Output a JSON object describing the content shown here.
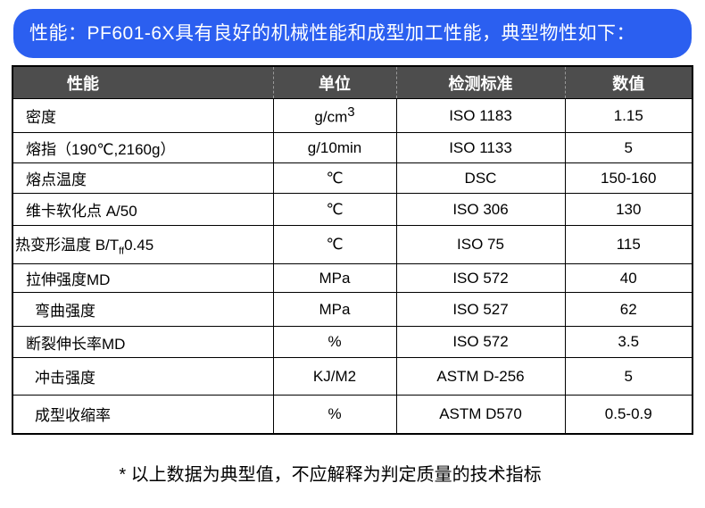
{
  "header": {
    "title": "性能：PF601-6X具有良好的机械性能和成型加工性能，典型物性如下："
  },
  "table": {
    "columns": [
      "性能",
      "单位",
      "检测标准",
      "数值"
    ],
    "rows": [
      [
        "密度",
        [
          "g/cm",
          "3"
        ],
        "ISO 1183",
        "1.15"
      ],
      [
        "熔指（190℃,2160g）",
        "g/10min",
        "ISO 1133",
        "5"
      ],
      [
        "熔点温度",
        "℃",
        "DSC",
        "150-160"
      ],
      [
        "维卡软化点 A/50",
        "℃",
        "ISO 306",
        "130"
      ],
      [
        [
          "热变形温度 B/T",
          "ff",
          "0.45"
        ],
        "℃",
        "ISO 75",
        "115"
      ],
      [
        "拉伸强度MD",
        "MPa",
        "ISO 572",
        "40"
      ],
      [
        "弯曲强度",
        "MPa",
        "ISO 527",
        "62"
      ],
      [
        "断裂伸长率MD",
        "%",
        "ISO 572",
        "3.5"
      ],
      [
        "冲击强度",
        "KJ/M2",
        "ASTM D-256",
        "5"
      ],
      [
        "成型收缩率",
        "%",
        "ASTM D570",
        "0.5-0.9"
      ]
    ]
  },
  "footnote": "* 以上数据为典型值，不应解释为判定质量的技术指标"
}
